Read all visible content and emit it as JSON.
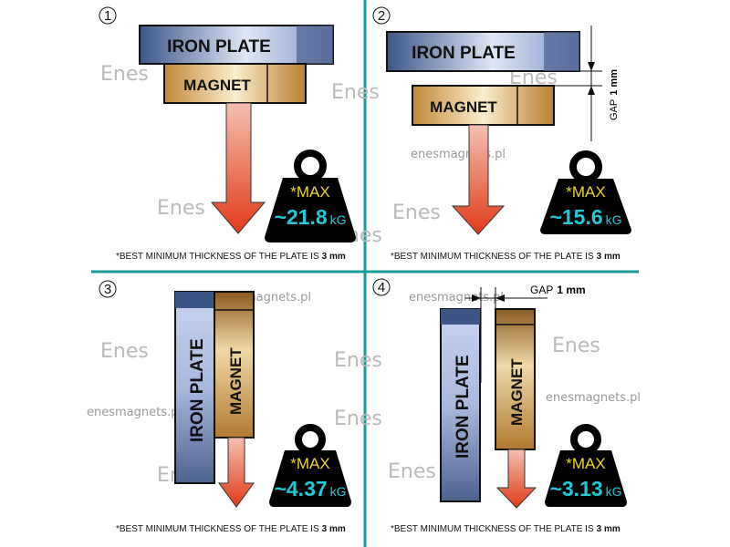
{
  "colors": {
    "divider": "#1a9a9a",
    "iron": "#9fb2d8",
    "magnet": "#c8a060",
    "arrow": "#e04020",
    "weight": "#000000",
    "max": "#e8d628",
    "value": "#20c8d8"
  },
  "watermark": {
    "site": "enesmagnets.pl",
    "logo": "Enes"
  },
  "panels": [
    {
      "number": "1",
      "plate": "IRON PLATE",
      "magnet": "MAGNET",
      "max": "*MAX",
      "value": "~21.8",
      "unit": "kG",
      "footnote": "*BEST MINIMUM THICKNESS OF THE PLATE IS",
      "thickness": "3 mm"
    },
    {
      "number": "2",
      "plate": "IRON PLATE",
      "magnet": "MAGNET",
      "gap_label": "GAP",
      "gap_value": "1 mm",
      "max": "*MAX",
      "value": "~15.6",
      "unit": "kG",
      "footnote": "*BEST MINIMUM THICKNESS OF THE PLATE IS",
      "thickness": "3 mm"
    },
    {
      "number": "3",
      "plate": "IRON  PLATE",
      "magnet": "MAGNET",
      "max": "*MAX",
      "value": "~4.37",
      "unit": "kG",
      "footnote": "*BEST MINIMUM THICKNESS OF THE PLATE IS",
      "thickness": "3 mm"
    },
    {
      "number": "4",
      "plate": "IRON PLATE",
      "magnet": "MAGNET",
      "gap_label": "GAP",
      "gap_value": "1 mm",
      "max": "*MAX",
      "value": "~3.13",
      "unit": "kG",
      "footnote": "*BEST MINIMUM THICKNESS OF THE PLATE IS",
      "thickness": "3 mm"
    }
  ]
}
